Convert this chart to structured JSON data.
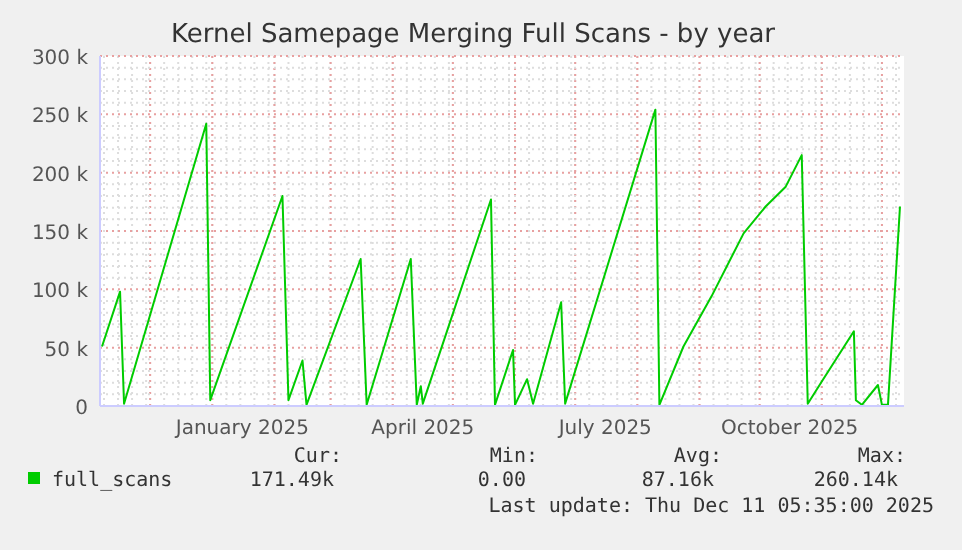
{
  "chart_data": {
    "type": "line",
    "title": "Kernel Samepage Merging Full Scans - by year",
    "x": [
      "2024-11-07",
      "2024-11-16",
      "2024-11-18",
      "2024-12-29",
      "2024-12-31",
      "2025-02-05",
      "2025-02-08",
      "2025-02-15",
      "2025-02-17",
      "2025-03-16",
      "2025-03-19",
      "2025-04-10",
      "2025-04-13",
      "2025-04-15",
      "2025-04-16",
      "2025-05-20",
      "2025-05-22",
      "2025-05-31",
      "2025-06-01",
      "2025-06-07",
      "2025-06-10",
      "2025-06-24",
      "2025-06-26",
      "2025-08-10",
      "2025-08-12",
      "2025-08-24",
      "2025-09-07",
      "2025-09-23",
      "2025-10-04",
      "2025-10-14",
      "2025-10-22",
      "2025-10-25",
      "2025-11-01",
      "2025-11-17",
      "2025-11-18",
      "2025-11-21",
      "2025-11-29",
      "2025-12-01",
      "2025-12-04",
      "2025-12-10"
    ],
    "series": [
      {
        "name": "full_scans",
        "color": "#00cc00",
        "values": [
          51000,
          98000,
          2000,
          242000,
          5000,
          180000,
          5000,
          39000,
          1000,
          126000,
          1000,
          126000,
          1000,
          17000,
          2000,
          177000,
          1000,
          48000,
          1000,
          23000,
          2000,
          89000,
          2000,
          254000,
          1000,
          51000,
          94000,
          148000,
          171000,
          188000,
          215000,
          2000,
          21000,
          64000,
          5000,
          1000,
          18000,
          1000,
          1000,
          171000
        ]
      }
    ],
    "xlim": [
      "2024-11-06",
      "2025-12-12"
    ],
    "xticks": [
      {
        "value": "2024-12-01",
        "label": null
      },
      {
        "value": "2025-01-01",
        "label": null
      },
      {
        "value": "2025-01-16",
        "label": "January 2025"
      },
      {
        "value": "2025-02-01",
        "label": null
      },
      {
        "value": "2025-03-01",
        "label": null
      },
      {
        "value": "2025-04-01",
        "label": null
      },
      {
        "value": "2025-04-16",
        "label": "April 2025"
      },
      {
        "value": "2025-05-01",
        "label": null
      },
      {
        "value": "2025-06-01",
        "label": null
      },
      {
        "value": "2025-07-01",
        "label": null
      },
      {
        "value": "2025-07-16",
        "label": "July 2025"
      },
      {
        "value": "2025-08-01",
        "label": null
      },
      {
        "value": "2025-09-01",
        "label": null
      },
      {
        "value": "2025-10-01",
        "label": null
      },
      {
        "value": "2025-10-16",
        "label": "October 2025"
      },
      {
        "value": "2025-11-01",
        "label": null
      },
      {
        "value": "2025-12-01",
        "label": null
      }
    ],
    "ylim": [
      0,
      300000
    ],
    "yticks": [
      {
        "value": 0,
        "label": "0"
      },
      {
        "value": 50000,
        "label": "50 k"
      },
      {
        "value": 100000,
        "label": "100 k"
      },
      {
        "value": 150000,
        "label": "150 k"
      },
      {
        "value": 200000,
        "label": "200 k"
      },
      {
        "value": 250000,
        "label": "250 k"
      },
      {
        "value": 300000,
        "label": "300 k"
      }
    ],
    "grid": true,
    "legend": "bottom",
    "marker": "none",
    "line_style": "solid",
    "annotations": [
      "Cur:",
      "Min:",
      "Avg:",
      "Max:",
      "171.49k",
      "0.00",
      "87.16k",
      "260.14k",
      "Last update: Thu Dec 11 05:35:00 2025"
    ]
  }
}
